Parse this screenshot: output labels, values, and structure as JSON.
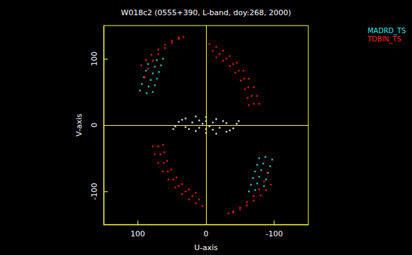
{
  "chart_data": {
    "type": "scatter",
    "title": "W018c2 (0555+390, L-band, doy:268, 2000)",
    "x_label": "U-axis",
    "y_label": "V-axis",
    "xlim": [
      150,
      -150
    ],
    "ylim": [
      -150,
      150
    ],
    "xticks": [
      100,
      0,
      -100
    ],
    "yticks": [
      -100,
      0,
      100
    ],
    "grid": false,
    "legend": "upper right",
    "marker": "square",
    "series": [
      {
        "color": "#ffffff",
        "x": [
          40,
          30,
          15,
          0,
          -15,
          -30,
          -40,
          -30,
          -15,
          0,
          15,
          30,
          20,
          10,
          0,
          -10,
          -20,
          -10,
          0,
          10,
          45,
          -45,
          5,
          -5,
          25,
          -25,
          35,
          -35,
          48,
          -48
        ],
        "values": [
          5,
          10,
          13,
          12,
          9,
          3,
          -5,
          -10,
          -13,
          -12,
          -9,
          -3,
          4,
          7,
          6,
          4,
          -4,
          -7,
          -6,
          -4,
          -2,
          2,
          2,
          -2,
          -6,
          6,
          8,
          -8,
          -6,
          6
        ]
      },
      {
        "name": "MADRD_TS",
        "color": "#33e6e6",
        "x": [
          97,
          94,
          91,
          88,
          85,
          87,
          84,
          81,
          78,
          75,
          72,
          78,
          75,
          72,
          69,
          66,
          63,
          -97,
          -94,
          -91,
          -88,
          -85,
          -87,
          -84,
          -81,
          -78,
          -75,
          -72,
          -78,
          -75,
          -72,
          -69,
          -66,
          -63
        ],
        "values": [
          52,
          62,
          72,
          82,
          92,
          48,
          58,
          68,
          78,
          88,
          98,
          50,
          60,
          70,
          80,
          90,
          100,
          -52,
          -62,
          -72,
          -82,
          -92,
          -48,
          -58,
          -68,
          -78,
          -88,
          -98,
          -50,
          -60,
          -70,
          -80,
          -90,
          -100
        ]
      },
      {
        "name": "TDBIN_TS",
        "color": "#ff2020",
        "x": [
          90,
          85,
          78,
          70,
          60,
          50,
          40,
          33,
          95,
          88,
          80,
          70,
          60,
          50,
          40,
          -90,
          -85,
          -78,
          -70,
          -60,
          -50,
          -40,
          -33,
          -95,
          -88,
          -80,
          -70,
          -60,
          -50,
          -40,
          -5,
          -15,
          -25,
          -35,
          -45,
          -55,
          -63,
          -70,
          -75,
          -78,
          -10,
          -20,
          -30,
          -40,
          -48,
          -56,
          -62,
          -67,
          -70,
          -15,
          -25,
          -35,
          -43,
          -51,
          -57,
          -61,
          -63,
          5,
          15,
          25,
          35,
          45,
          55,
          63,
          70,
          75,
          78,
          10,
          20,
          30,
          40,
          48,
          56,
          62,
          67,
          70,
          15,
          25,
          35,
          43,
          51,
          57,
          61,
          63
        ],
        "values": [
          72,
          85,
          97,
          107,
          116,
          124,
          130,
          133,
          90,
          98,
          106,
          114,
          121,
          127,
          132,
          -72,
          -85,
          -97,
          -107,
          -116,
          -124,
          -130,
          -133,
          -90,
          -98,
          -106,
          -114,
          -121,
          -127,
          -132,
          122,
          118,
          112,
          104,
          94,
          82,
          70,
          57,
          44,
          32,
          112,
          107,
          100,
          92,
          82,
          70,
          57,
          44,
          32,
          102,
          97,
          89,
          79,
          67,
          54,
          41,
          30,
          -122,
          -118,
          -112,
          -104,
          -94,
          -82,
          -70,
          -57,
          -44,
          -32,
          -112,
          -107,
          -100,
          -92,
          -82,
          -70,
          -57,
          -44,
          -32,
          -102,
          -97,
          -89,
          -79,
          -67,
          -54,
          -41,
          -30
        ]
      }
    ]
  }
}
